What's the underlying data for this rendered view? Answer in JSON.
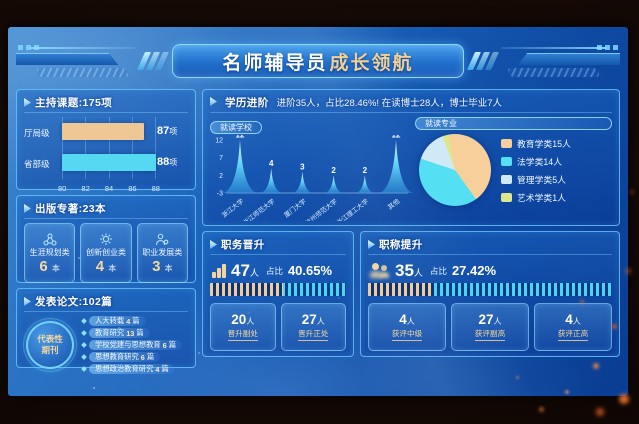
{
  "title": {
    "part1": "名师辅导员",
    "part2": "成长领航"
  },
  "panels": {
    "keti": {
      "unit": "项"
    },
    "zhuanzhu": {
      "unit": "本"
    },
    "lunwen": {
      "circle_line1": "代表性",
      "circle_line2": "期刊",
      "unit": "篇"
    },
    "xueli": {
      "title": "学历进阶",
      "subtitle": "进阶35人，占比28.46%! 在读博士28人，博士毕业7人",
      "tab_school": "就读学校",
      "tab_major": "就读专业",
      "person_unit": "人"
    },
    "promo": {
      "ratio_label": "占比",
      "person_unit": "人"
    }
  },
  "chart_data": [
    {
      "id": "keti",
      "type": "bar",
      "orientation": "horizontal",
      "title": "主持课题:175项",
      "categories": [
        "厅局级",
        "省部级"
      ],
      "values": [
        87,
        88
      ],
      "unit": "项",
      "x_ticks": [
        80,
        82,
        84,
        86,
        88
      ],
      "xlim": [
        80,
        88
      ],
      "colors": [
        "#eec794",
        "#55d8f2"
      ],
      "grid": true
    },
    {
      "id": "zhuanzhu",
      "type": "table",
      "title": "出版专著:23本",
      "categories": [
        "生涯规划类",
        "创新创业类",
        "职业发展类"
      ],
      "values": [
        6,
        4,
        3
      ],
      "unit": "本",
      "icons": [
        "network-icon",
        "bulb-icon",
        "person-gear-icon"
      ]
    },
    {
      "id": "lunwen",
      "type": "table",
      "title": "发表论文:102篇",
      "categories": [
        "人大转载",
        "教育研究",
        "学校党建与思想教育",
        "思想教育研究",
        "思想政治教育研究"
      ],
      "values": [
        4,
        13,
        6,
        6,
        4
      ],
      "unit": "篇"
    },
    {
      "id": "school",
      "type": "area",
      "title": "就读学校",
      "categories": [
        "浙江大学",
        "浙江师范大学",
        "厦门大学",
        "杭州师范大学",
        "浙江理工大学",
        "其他"
      ],
      "values": [
        12,
        4,
        3,
        2,
        2,
        12
      ],
      "y_ticks": [
        12,
        7,
        2,
        -3
      ],
      "ylim": [
        -3,
        12
      ],
      "color": "#6fe0ff"
    },
    {
      "id": "major",
      "type": "pie",
      "title": "就读专业",
      "categories": [
        "教育学类",
        "法学类",
        "管理学类",
        "艺术学类"
      ],
      "values": [
        15,
        14,
        5,
        1
      ],
      "unit": "人",
      "colors": [
        "#f6cf9a",
        "#55dff2",
        "#cfe9f7",
        "#dde78a"
      ],
      "legend_position": "right",
      "start_angle": -10
    },
    {
      "id": "zhiwu",
      "type": "bar",
      "title": "职务晋升",
      "count": 47,
      "unit": "人",
      "ratio": "40.65%",
      "fill_pct": 54,
      "sub": [
        {
          "value": 20,
          "label": "晋升副处"
        },
        {
          "value": 27,
          "label": "晋升正处"
        }
      ]
    },
    {
      "id": "zhicheng",
      "type": "bar",
      "title": "职称提升",
      "count": 35,
      "unit": "人",
      "ratio": "27.42%",
      "fill_pct": 27,
      "sub": [
        {
          "value": 4,
          "label": "获评中级"
        },
        {
          "value": 27,
          "label": "获评副高"
        },
        {
          "value": 4,
          "label": "获评正高"
        }
      ]
    }
  ]
}
